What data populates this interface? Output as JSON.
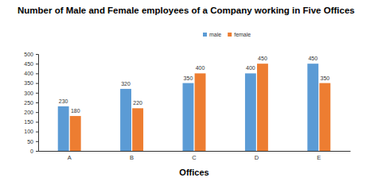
{
  "chart_data": {
    "type": "bar",
    "title": "Number of Male and Female employees of a Company working in Five Offices",
    "xlabel": "Offices",
    "categories": [
      "A",
      "B",
      "C",
      "D",
      "E"
    ],
    "series": [
      {
        "name": "male",
        "color": "#5b9bd5",
        "values": [
          230,
          320,
          350,
          400,
          450
        ]
      },
      {
        "name": "female",
        "color": "#ed7d31",
        "values": [
          180,
          220,
          400,
          450,
          350
        ]
      }
    ],
    "ylim": [
      0,
      500
    ],
    "yticks": [
      0,
      50,
      100,
      150,
      200,
      250,
      300,
      350,
      400,
      450,
      500
    ],
    "grid": false,
    "legend": "top",
    "data_labels": true
  }
}
